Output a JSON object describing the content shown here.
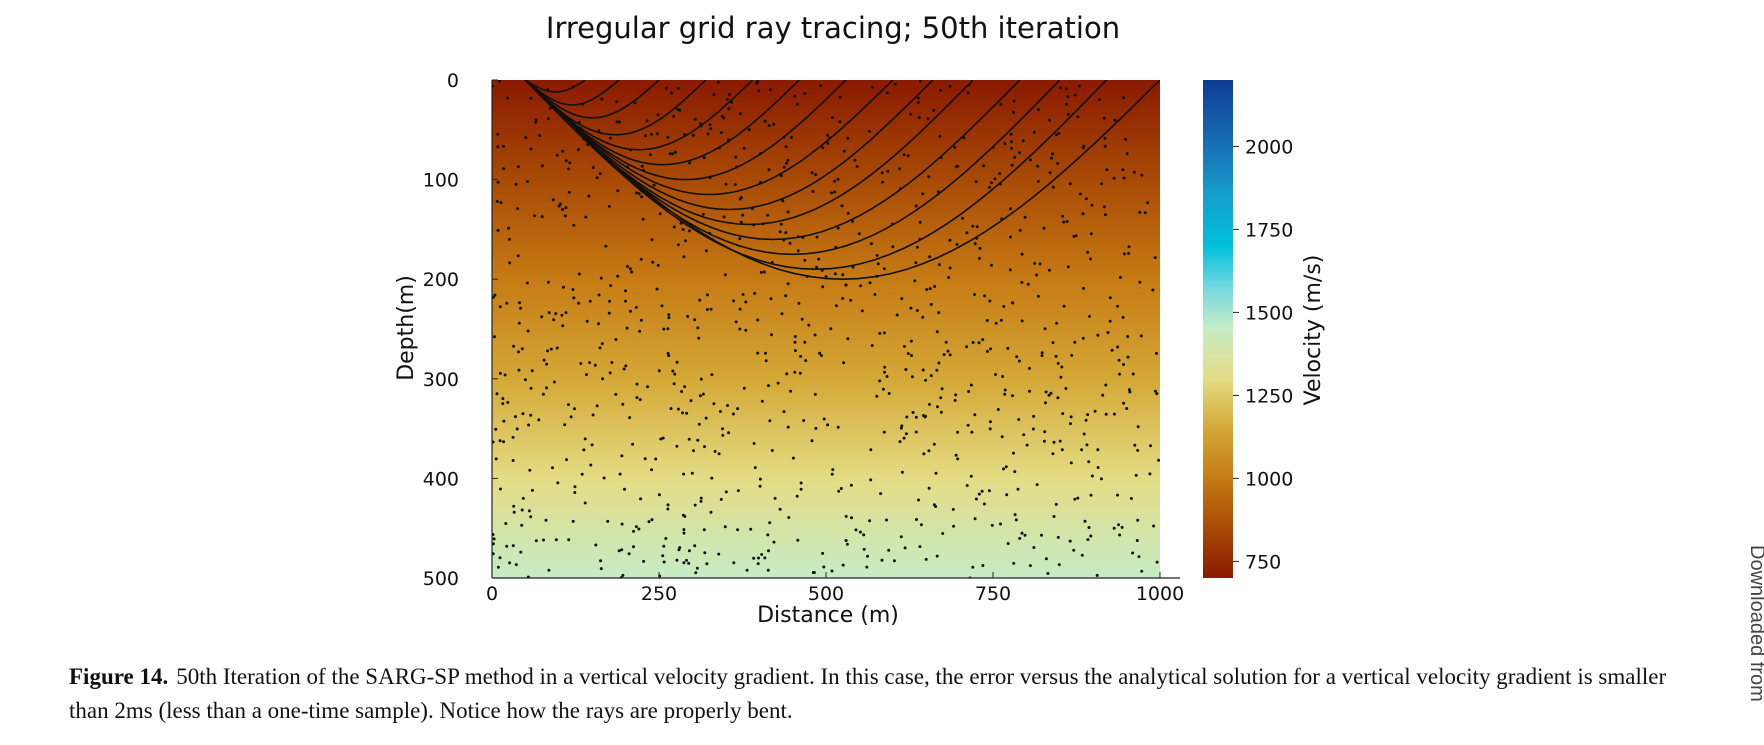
{
  "chart_data": {
    "type": "heatmap",
    "title": "Irregular grid ray tracing; 50th iteration",
    "xlabel": "Distance (m)",
    "ylabel": "Depth(m)",
    "xlim": [
      0,
      1000
    ],
    "ylim": [
      500,
      0
    ],
    "x_ticks": [
      0,
      250,
      500,
      750,
      1000
    ],
    "y_ticks": [
      0,
      100,
      200,
      300,
      400,
      500
    ],
    "grid": false,
    "colorbar": {
      "label": "Velocity (m/s)",
      "range": [
        700,
        2200
      ],
      "ticks": [
        750,
        1000,
        1250,
        1500,
        1750,
        2000
      ],
      "colormap_stops": [
        {
          "value": 700,
          "color": "#8a1a00"
        },
        {
          "value": 850,
          "color": "#a84a06"
        },
        {
          "value": 1000,
          "color": "#c67a14"
        },
        {
          "value": 1150,
          "color": "#d4a836"
        },
        {
          "value": 1300,
          "color": "#e4dc84"
        },
        {
          "value": 1450,
          "color": "#c6ecc6"
        },
        {
          "value": 1575,
          "color": "#74d8e0"
        },
        {
          "value": 1700,
          "color": "#00c0dc"
        },
        {
          "value": 1850,
          "color": "#14a0cc"
        },
        {
          "value": 2000,
          "color": "#1870b4"
        },
        {
          "value": 2200,
          "color": "#0c3c96"
        }
      ]
    },
    "velocity_model": {
      "depths": [
        0,
        100,
        200,
        300,
        400,
        500
      ],
      "values": [
        700,
        850,
        1000,
        1150,
        1300,
        1450
      ]
    },
    "source": {
      "x": 50,
      "depth": 0
    },
    "receivers_x": [
      120,
      210,
      300,
      390,
      480,
      570,
      660,
      750,
      840,
      930,
      1000
    ],
    "ray_max_depths": [
      12,
      25,
      38,
      55,
      70,
      85,
      100,
      115,
      130,
      145,
      160,
      175,
      190,
      200
    ],
    "ray_end_x": [
      140,
      190,
      250,
      320,
      390,
      460,
      530,
      600,
      660,
      720,
      790,
      850,
      920,
      1000
    ],
    "grid_nodes": {
      "count": 1000,
      "distribution": "pseudo-random",
      "seed": 14
    }
  },
  "caption": {
    "label": "Figure 14.",
    "text": "50th Iteration of the SARG-SP method in a vertical velocity gradient. In this case, the error versus the analytical solution for a vertical velocity gradient is smaller than 2ms (less than a one-time sample). Notice how the rays are properly bent."
  },
  "side_text": "Downloaded from"
}
